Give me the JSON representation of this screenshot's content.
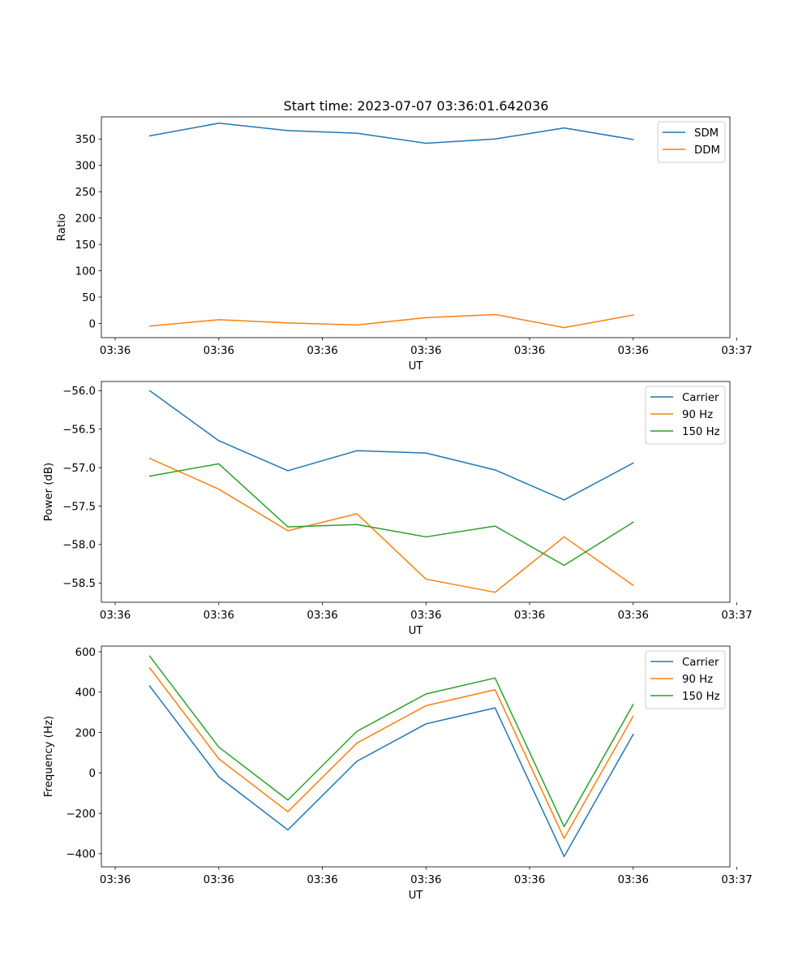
{
  "figure": {
    "title": "Start time: 2023-07-07 03:36:01.642036"
  },
  "colors": {
    "blue": "#1f77b4",
    "orange": "#ff7f0e",
    "green": "#2ca02c"
  },
  "chart_data": [
    {
      "type": "line",
      "title": "Start time: 2023-07-07 03:36:01.642036",
      "xlabel": "UT",
      "ylabel": "Ratio",
      "xlim": [
        -0.7,
        8.4
      ],
      "ylim": [
        -27,
        392
      ],
      "x_ticks": [
        -0.5,
        1,
        2.5,
        4,
        5.5,
        7,
        8.5
      ],
      "x_tick_labels": [
        "03:36",
        "03:36",
        "03:36",
        "03:36",
        "03:36",
        "03:36",
        "03:37"
      ],
      "y_ticks": [
        0,
        50,
        100,
        150,
        200,
        250,
        300,
        350
      ],
      "y_tick_labels": [
        "0",
        "50",
        "100",
        "150",
        "200",
        "250",
        "300",
        "350"
      ],
      "legend": "top-right",
      "x": [
        0,
        1,
        2,
        3,
        4,
        5,
        6,
        7
      ],
      "series": [
        {
          "name": "SDM",
          "color": "#1f77b4",
          "values": [
            356,
            380,
            366,
            361,
            342,
            350,
            371,
            349
          ]
        },
        {
          "name": "DDM",
          "color": "#ff7f0e",
          "values": [
            -5,
            7,
            1,
            -3,
            11,
            17,
            -8,
            16
          ]
        }
      ]
    },
    {
      "type": "line",
      "title": "",
      "xlabel": "UT",
      "ylabel": "Power (dB)",
      "xlim": [
        -0.7,
        8.4
      ],
      "ylim": [
        -58.75,
        -55.88
      ],
      "x_ticks": [
        -0.5,
        1,
        2.5,
        4,
        5.5,
        7,
        8.5
      ],
      "x_tick_labels": [
        "03:36",
        "03:36",
        "03:36",
        "03:36",
        "03:36",
        "03:36",
        "03:37"
      ],
      "y_ticks": [
        -56.0,
        -56.5,
        -57.0,
        -57.5,
        -58.0,
        -58.5
      ],
      "y_tick_labels": [
        "−56.0",
        "−56.5",
        "−57.0",
        "−57.5",
        "−58.0",
        "−58.5"
      ],
      "legend": "top-right",
      "x": [
        0,
        1,
        2,
        3,
        4,
        5,
        6,
        7
      ],
      "series": [
        {
          "name": "Carrier",
          "color": "#1f77b4",
          "values": [
            -56.0,
            -56.65,
            -57.04,
            -56.78,
            -56.81,
            -57.03,
            -57.42,
            -56.94
          ]
        },
        {
          "name": "90 Hz",
          "color": "#ff7f0e",
          "values": [
            -56.88,
            -57.28,
            -57.82,
            -57.6,
            -58.45,
            -58.62,
            -57.9,
            -58.53
          ]
        },
        {
          "name": "150 Hz",
          "color": "#2ca02c",
          "values": [
            -57.11,
            -56.95,
            -57.77,
            -57.74,
            -57.9,
            -57.76,
            -58.27,
            -57.71
          ]
        }
      ]
    },
    {
      "type": "line",
      "title": "",
      "xlabel": "UT",
      "ylabel": "Frequency (Hz)",
      "xlim": [
        -0.7,
        8.4
      ],
      "ylim": [
        -465,
        628
      ],
      "x_ticks": [
        -0.5,
        1,
        2.5,
        4,
        5.5,
        7,
        8.5
      ],
      "x_tick_labels": [
        "03:36",
        "03:36",
        "03:36",
        "03:36",
        "03:36",
        "03:36",
        "03:37"
      ],
      "y_ticks": [
        -400,
        -200,
        0,
        200,
        400,
        600
      ],
      "y_tick_labels": [
        "−400",
        "−200",
        "0",
        "200",
        "400",
        "600"
      ],
      "legend": "top-right",
      "x": [
        0,
        1,
        2,
        3,
        4,
        5,
        6,
        7
      ],
      "series": [
        {
          "name": "Carrier",
          "color": "#1f77b4",
          "values": [
            430,
            -20,
            -282,
            58,
            243,
            322,
            -414,
            191
          ]
        },
        {
          "name": "90 Hz",
          "color": "#ff7f0e",
          "values": [
            520,
            70,
            -192,
            148,
            333,
            412,
            -324,
            281
          ]
        },
        {
          "name": "150 Hz",
          "color": "#2ca02c",
          "values": [
            578,
            128,
            -134,
            206,
            391,
            470,
            -266,
            339
          ]
        }
      ]
    }
  ]
}
